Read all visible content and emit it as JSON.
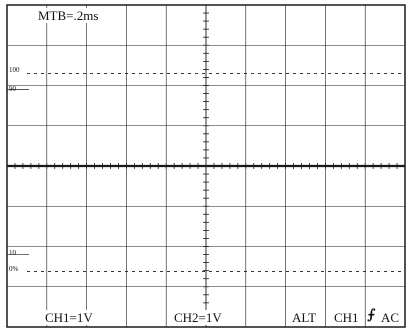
{
  "screen": {
    "timebase": "MTB=.2ms",
    "markers": {
      "pct_100": "100",
      "pct_90": "90",
      "pct_10": "10",
      "pct_0": "0%"
    },
    "channel1": "CH1=1V",
    "channel2": "CH2=1V",
    "mode": "ALT",
    "trigger_source": "CH1",
    "trigger_slope_icon": "rising-edge-trigger-icon",
    "trigger_slope_glyph": "⨍",
    "coupling": "AC"
  },
  "colors": {
    "grid": "#1a1a1a",
    "background": "#ffffff",
    "text": "#111111"
  }
}
